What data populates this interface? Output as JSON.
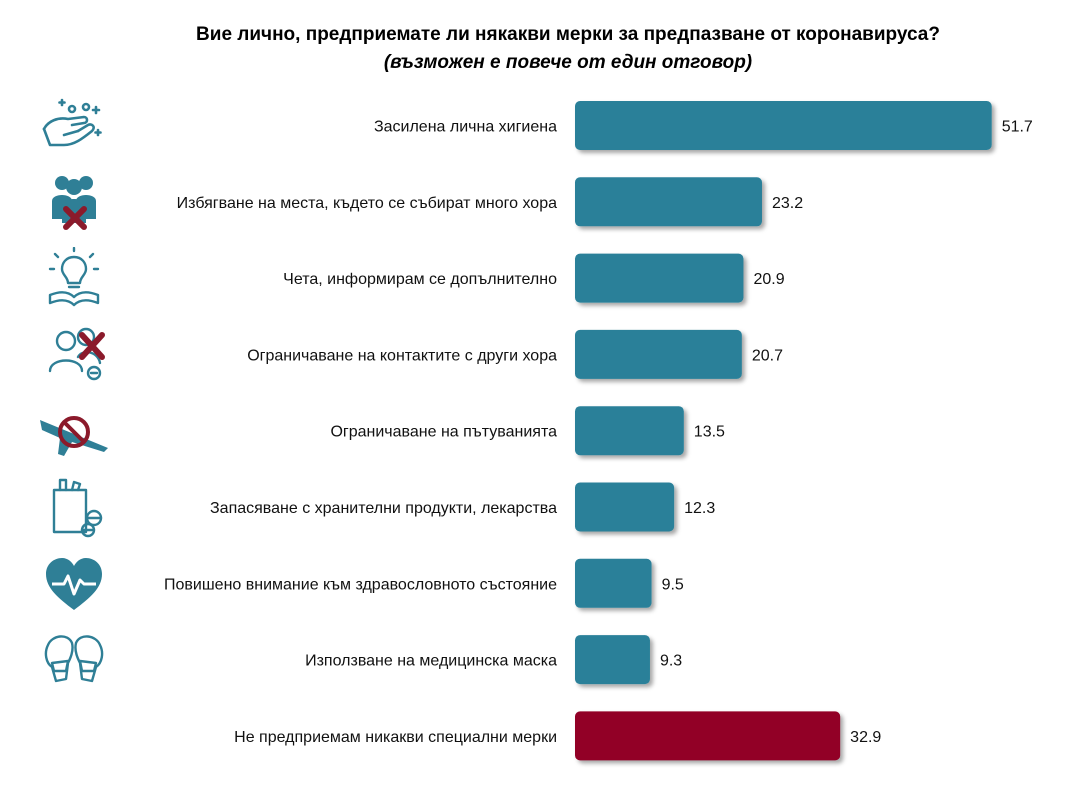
{
  "title": "Вие лично, предприемате ли някакви мерки за предпазване от коронавируса?",
  "subtitle": "(възможен е повече от един отговор)",
  "colors": {
    "bar": "#2a8099",
    "highlight": "#920027",
    "icon": "#2f7f96",
    "cross": "#8b1a2b"
  },
  "icons": [
    "hand-washing-icon",
    "crowd-crossed-icon",
    "lightbulb-book-icon",
    "people-crossed-icon",
    "plane-prohibited-icon",
    "grocery-bag-pills-icon",
    "heart-pulse-icon",
    "masked-faces-icon",
    null
  ],
  "chart_data": {
    "type": "bar",
    "orientation": "horizontal",
    "categories": [
      "Засилена лична хигиена",
      "Избягване на места, където се събират много хора",
      "Чета, информирам се допълнително",
      "Ограничаване на контактите с други хора",
      "Ограничаване на пътуванията",
      "Запасяване с хранителни продукти, лекарства",
      "Повишено внимание към здравословното състояние",
      "Използване на медицинска маска",
      "Не предприемам никакви специални мерки"
    ],
    "values": [
      51.7,
      23.2,
      20.9,
      20.7,
      13.5,
      12.3,
      9.5,
      9.3,
      32.9
    ],
    "value_labels": [
      "51.7",
      "23.2",
      "20.9",
      "20.7",
      "13.5",
      "12.3",
      "9.5",
      "9.3",
      "32.9"
    ],
    "highlight_index": 8,
    "xlim": [
      0,
      55
    ],
    "grid": false,
    "legend": "none"
  }
}
